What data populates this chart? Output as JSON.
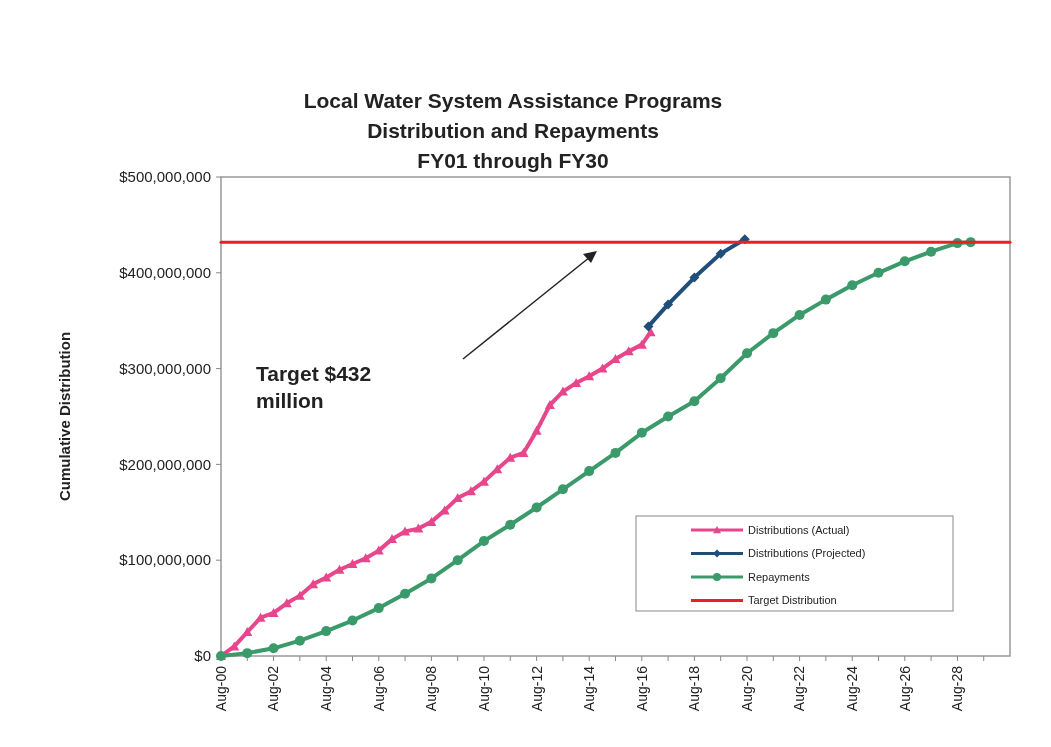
{
  "chart_data": {
    "type": "line",
    "title": "Local Water System Assistance Programs\nDistribution and Repayments\nFY01 through FY30",
    "ylabel": "Cumulative Distribution",
    "xlim": [
      "2000-08",
      "2030-08"
    ],
    "xticks": [
      {
        "value": "2000-08",
        "label": "Aug-00"
      },
      {
        "value": "2001-08",
        "label": null
      },
      {
        "value": "2002-08",
        "label": "Aug-02"
      },
      {
        "value": "2003-08",
        "label": null
      },
      {
        "value": "2004-08",
        "label": "Aug-04"
      },
      {
        "value": "2005-08",
        "label": null
      },
      {
        "value": "2006-08",
        "label": "Aug-06"
      },
      {
        "value": "2007-08",
        "label": null
      },
      {
        "value": "2008-08",
        "label": "Aug-08"
      },
      {
        "value": "2009-08",
        "label": null
      },
      {
        "value": "2010-08",
        "label": "Aug-10"
      },
      {
        "value": "2011-08",
        "label": null
      },
      {
        "value": "2012-08",
        "label": "Aug-12"
      },
      {
        "value": "2013-08",
        "label": null
      },
      {
        "value": "2014-08",
        "label": "Aug-14"
      },
      {
        "value": "2015-08",
        "label": null
      },
      {
        "value": "2016-08",
        "label": "Aug-16"
      },
      {
        "value": "2017-08",
        "label": null
      },
      {
        "value": "2018-08",
        "label": "Aug-18"
      },
      {
        "value": "2019-08",
        "label": null
      },
      {
        "value": "2020-08",
        "label": "Aug-20"
      },
      {
        "value": "2021-08",
        "label": null
      },
      {
        "value": "2022-08",
        "label": "Aug-22"
      },
      {
        "value": "2023-08",
        "label": null
      },
      {
        "value": "2024-08",
        "label": "Aug-24"
      },
      {
        "value": "2025-08",
        "label": null
      },
      {
        "value": "2026-08",
        "label": "Aug-26"
      },
      {
        "value": "2027-08",
        "label": null
      },
      {
        "value": "2028-08",
        "label": "Aug-28"
      },
      {
        "value": "2029-08",
        "label": null
      }
    ],
    "ylim": [
      0,
      500000000
    ],
    "yticks": [
      {
        "value": 0,
        "label": "$0"
      },
      {
        "value": 100000000,
        "label": "$100,000,000"
      },
      {
        "value": 200000000,
        "label": "$200,000,000"
      },
      {
        "value": 300000000,
        "label": "$300,000,000"
      },
      {
        "value": 400000000,
        "label": "$400,000,000"
      },
      {
        "value": 500000000,
        "label": "$500,000,000"
      }
    ],
    "grid": false,
    "legend": "bottom right",
    "series": [
      {
        "name": "Distributions (Actual)",
        "color": "#e8468c",
        "marker": "triangle",
        "x": [
          "2000-08",
          "2001-02",
          "2001-08",
          "2002-02",
          "2002-08",
          "2003-02",
          "2003-08",
          "2004-02",
          "2004-08",
          "2005-02",
          "2005-08",
          "2006-02",
          "2006-08",
          "2007-02",
          "2007-08",
          "2008-02",
          "2008-08",
          "2009-02",
          "2009-08",
          "2010-02",
          "2010-08",
          "2011-02",
          "2011-08",
          "2012-02",
          "2012-08",
          "2013-02",
          "2013-08",
          "2014-02",
          "2014-08",
          "2015-02",
          "2015-08",
          "2016-02",
          "2016-08",
          "2016-12"
        ],
        "values": [
          0,
          10000000,
          25000000,
          40000000,
          45000000,
          55000000,
          63000000,
          75000000,
          82000000,
          90000000,
          96000000,
          102000000,
          110000000,
          122000000,
          130000000,
          133000000,
          140000000,
          152000000,
          165000000,
          172000000,
          182000000,
          195000000,
          207000000,
          212000000,
          235000000,
          262000000,
          276000000,
          285000000,
          292000000,
          300000000,
          310000000,
          318000000,
          325000000,
          338000000
        ]
      },
      {
        "name": "Distributions (Projected)",
        "color": "#1f4e79",
        "marker": "diamond",
        "x": [
          "2016-11",
          "2017-08",
          "2018-08",
          "2019-08",
          "2020-07"
        ],
        "values": [
          344000000,
          367000000,
          395000000,
          420000000,
          435000000
        ]
      },
      {
        "name": "Repayments",
        "color": "#3a9a6a",
        "marker": "circle",
        "x": [
          "2000-08",
          "2001-08",
          "2002-08",
          "2003-08",
          "2004-08",
          "2005-08",
          "2006-08",
          "2007-08",
          "2008-08",
          "2009-08",
          "2010-08",
          "2011-08",
          "2012-08",
          "2013-08",
          "2014-08",
          "2015-08",
          "2016-08",
          "2017-08",
          "2018-08",
          "2019-08",
          "2020-08",
          "2021-08",
          "2022-08",
          "2023-08",
          "2024-08",
          "2025-08",
          "2026-08",
          "2027-08",
          "2028-08",
          "2029-02"
        ],
        "values": [
          0,
          3000000,
          8000000,
          16000000,
          26000000,
          37000000,
          50000000,
          65000000,
          81000000,
          100000000,
          120000000,
          137000000,
          155000000,
          174000000,
          193000000,
          212000000,
          233000000,
          250000000,
          266000000,
          290000000,
          316000000,
          337000000,
          356000000,
          372000000,
          387000000,
          400000000,
          412000000,
          422000000,
          431000000,
          432000000
        ]
      },
      {
        "name": "Target Distribution",
        "color": "#e8202a",
        "marker": "none",
        "x": [
          "2000-08",
          "2030-08"
        ],
        "values": [
          432000000,
          432000000
        ]
      }
    ],
    "annotations": [
      "Target $432 million"
    ]
  }
}
